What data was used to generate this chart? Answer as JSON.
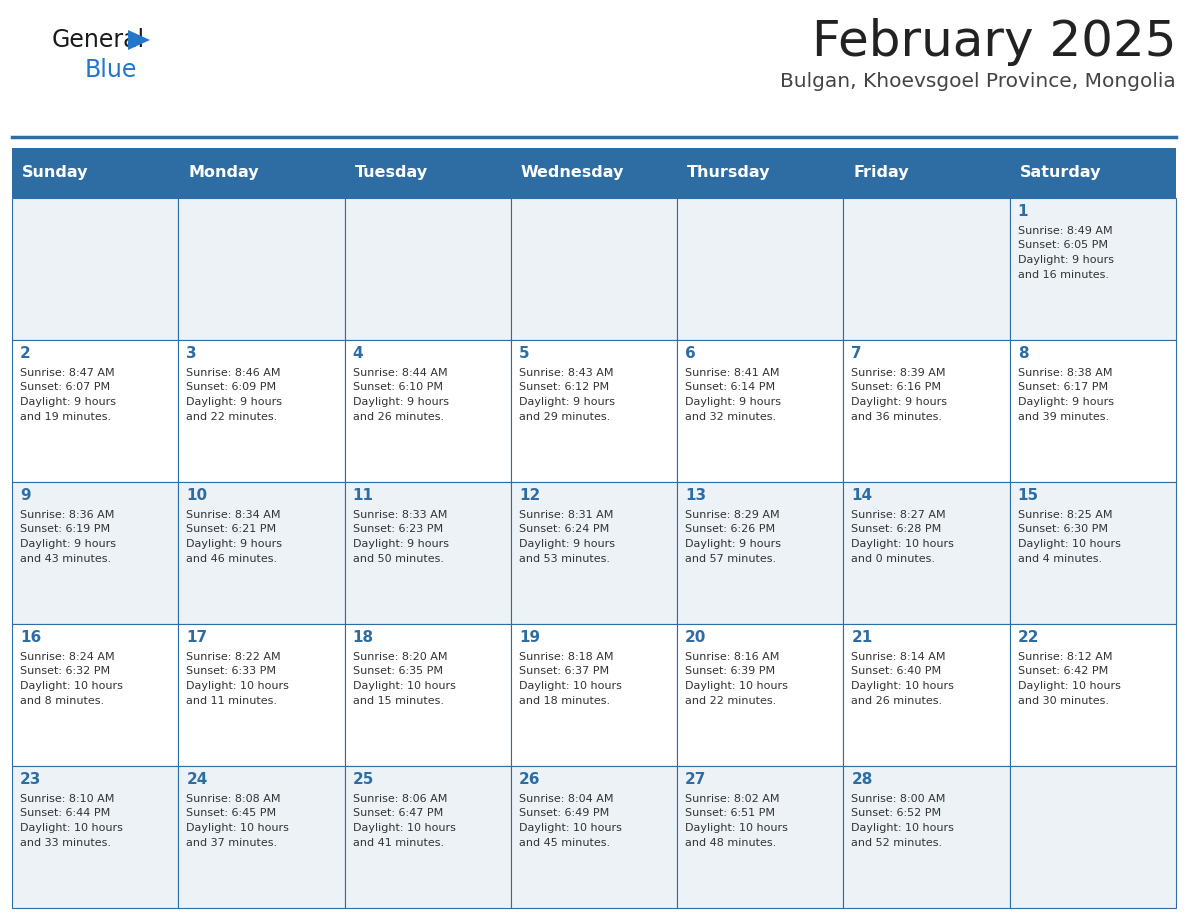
{
  "title": "February 2025",
  "subtitle": "Bulgan, Khoevsgoel Province, Mongolia",
  "header_color": "#2e6da4",
  "header_text_color": "#ffffff",
  "day_names": [
    "Sunday",
    "Monday",
    "Tuesday",
    "Wednesday",
    "Thursday",
    "Friday",
    "Saturday"
  ],
  "even_row_color": "#edf2f7",
  "odd_row_color": "#ffffff",
  "cell_border_color": "#2e6da4",
  "title_color": "#222222",
  "subtitle_color": "#444444",
  "day_number_color": "#2e6da4",
  "cell_text_color": "#333333",
  "logo_general_color": "#1a1a1a",
  "logo_blue_color": "#2277cc",
  "days_data": [
    {
      "day": 1,
      "col": 6,
      "row": 0,
      "sunrise": "8:49 AM",
      "sunset": "6:05 PM",
      "daylight_h": "9 hours",
      "daylight_m": "16 minutes."
    },
    {
      "day": 2,
      "col": 0,
      "row": 1,
      "sunrise": "8:47 AM",
      "sunset": "6:07 PM",
      "daylight_h": "9 hours",
      "daylight_m": "19 minutes."
    },
    {
      "day": 3,
      "col": 1,
      "row": 1,
      "sunrise": "8:46 AM",
      "sunset": "6:09 PM",
      "daylight_h": "9 hours",
      "daylight_m": "22 minutes."
    },
    {
      "day": 4,
      "col": 2,
      "row": 1,
      "sunrise": "8:44 AM",
      "sunset": "6:10 PM",
      "daylight_h": "9 hours",
      "daylight_m": "26 minutes."
    },
    {
      "day": 5,
      "col": 3,
      "row": 1,
      "sunrise": "8:43 AM",
      "sunset": "6:12 PM",
      "daylight_h": "9 hours",
      "daylight_m": "29 minutes."
    },
    {
      "day": 6,
      "col": 4,
      "row": 1,
      "sunrise": "8:41 AM",
      "sunset": "6:14 PM",
      "daylight_h": "9 hours",
      "daylight_m": "32 minutes."
    },
    {
      "day": 7,
      "col": 5,
      "row": 1,
      "sunrise": "8:39 AM",
      "sunset": "6:16 PM",
      "daylight_h": "9 hours",
      "daylight_m": "36 minutes."
    },
    {
      "day": 8,
      "col": 6,
      "row": 1,
      "sunrise": "8:38 AM",
      "sunset": "6:17 PM",
      "daylight_h": "9 hours",
      "daylight_m": "39 minutes."
    },
    {
      "day": 9,
      "col": 0,
      "row": 2,
      "sunrise": "8:36 AM",
      "sunset": "6:19 PM",
      "daylight_h": "9 hours",
      "daylight_m": "43 minutes."
    },
    {
      "day": 10,
      "col": 1,
      "row": 2,
      "sunrise": "8:34 AM",
      "sunset": "6:21 PM",
      "daylight_h": "9 hours",
      "daylight_m": "46 minutes."
    },
    {
      "day": 11,
      "col": 2,
      "row": 2,
      "sunrise": "8:33 AM",
      "sunset": "6:23 PM",
      "daylight_h": "9 hours",
      "daylight_m": "50 minutes."
    },
    {
      "day": 12,
      "col": 3,
      "row": 2,
      "sunrise": "8:31 AM",
      "sunset": "6:24 PM",
      "daylight_h": "9 hours",
      "daylight_m": "53 minutes."
    },
    {
      "day": 13,
      "col": 4,
      "row": 2,
      "sunrise": "8:29 AM",
      "sunset": "6:26 PM",
      "daylight_h": "9 hours",
      "daylight_m": "57 minutes."
    },
    {
      "day": 14,
      "col": 5,
      "row": 2,
      "sunrise": "8:27 AM",
      "sunset": "6:28 PM",
      "daylight_h": "10 hours",
      "daylight_m": "0 minutes."
    },
    {
      "day": 15,
      "col": 6,
      "row": 2,
      "sunrise": "8:25 AM",
      "sunset": "6:30 PM",
      "daylight_h": "10 hours",
      "daylight_m": "4 minutes."
    },
    {
      "day": 16,
      "col": 0,
      "row": 3,
      "sunrise": "8:24 AM",
      "sunset": "6:32 PM",
      "daylight_h": "10 hours",
      "daylight_m": "8 minutes."
    },
    {
      "day": 17,
      "col": 1,
      "row": 3,
      "sunrise": "8:22 AM",
      "sunset": "6:33 PM",
      "daylight_h": "10 hours",
      "daylight_m": "11 minutes."
    },
    {
      "day": 18,
      "col": 2,
      "row": 3,
      "sunrise": "8:20 AM",
      "sunset": "6:35 PM",
      "daylight_h": "10 hours",
      "daylight_m": "15 minutes."
    },
    {
      "day": 19,
      "col": 3,
      "row": 3,
      "sunrise": "8:18 AM",
      "sunset": "6:37 PM",
      "daylight_h": "10 hours",
      "daylight_m": "18 minutes."
    },
    {
      "day": 20,
      "col": 4,
      "row": 3,
      "sunrise": "8:16 AM",
      "sunset": "6:39 PM",
      "daylight_h": "10 hours",
      "daylight_m": "22 minutes."
    },
    {
      "day": 21,
      "col": 5,
      "row": 3,
      "sunrise": "8:14 AM",
      "sunset": "6:40 PM",
      "daylight_h": "10 hours",
      "daylight_m": "26 minutes."
    },
    {
      "day": 22,
      "col": 6,
      "row": 3,
      "sunrise": "8:12 AM",
      "sunset": "6:42 PM",
      "daylight_h": "10 hours",
      "daylight_m": "30 minutes."
    },
    {
      "day": 23,
      "col": 0,
      "row": 4,
      "sunrise": "8:10 AM",
      "sunset": "6:44 PM",
      "daylight_h": "10 hours",
      "daylight_m": "33 minutes."
    },
    {
      "day": 24,
      "col": 1,
      "row": 4,
      "sunrise": "8:08 AM",
      "sunset": "6:45 PM",
      "daylight_h": "10 hours",
      "daylight_m": "37 minutes."
    },
    {
      "day": 25,
      "col": 2,
      "row": 4,
      "sunrise": "8:06 AM",
      "sunset": "6:47 PM",
      "daylight_h": "10 hours",
      "daylight_m": "41 minutes."
    },
    {
      "day": 26,
      "col": 3,
      "row": 4,
      "sunrise": "8:04 AM",
      "sunset": "6:49 PM",
      "daylight_h": "10 hours",
      "daylight_m": "45 minutes."
    },
    {
      "day": 27,
      "col": 4,
      "row": 4,
      "sunrise": "8:02 AM",
      "sunset": "6:51 PM",
      "daylight_h": "10 hours",
      "daylight_m": "48 minutes."
    },
    {
      "day": 28,
      "col": 5,
      "row": 4,
      "sunrise": "8:00 AM",
      "sunset": "6:52 PM",
      "daylight_h": "10 hours",
      "daylight_m": "52 minutes."
    }
  ],
  "num_rows": 5,
  "num_cols": 7,
  "figsize": [
    11.88,
    9.18
  ],
  "dpi": 100
}
